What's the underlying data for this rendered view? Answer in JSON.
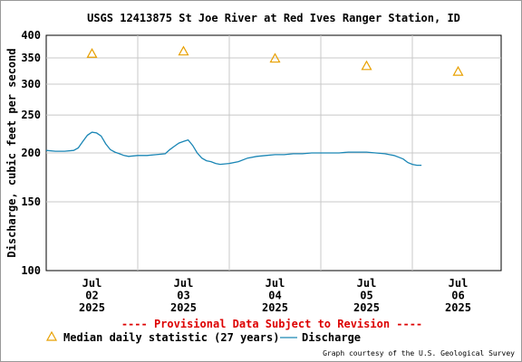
{
  "chart_data": {
    "type": "line",
    "title": "USGS 12413875 St Joe River at Red Ives Ranger Station, ID",
    "ylabel": "Discharge, cubic feet per second",
    "xlabel": "",
    "yscale": "log",
    "ylim": [
      100,
      400
    ],
    "yticks": [
      100,
      150,
      200,
      250,
      300,
      350,
      400
    ],
    "xlim": [
      0,
      4.5
    ],
    "xticks": [
      {
        "x": 0.5,
        "lines": [
          "Jul",
          "02",
          "2025"
        ]
      },
      {
        "x": 1.5,
        "lines": [
          "Jul",
          "03",
          "2025"
        ]
      },
      {
        "x": 2.5,
        "lines": [
          "Jul",
          "04",
          "2025"
        ]
      },
      {
        "x": 3.5,
        "lines": [
          "Jul",
          "05",
          "2025"
        ]
      },
      {
        "x": 4.5,
        "lines": [
          "Jul",
          "06",
          "2025"
        ]
      }
    ],
    "grid": true,
    "provisional_note": "---- Provisional Data Subject to Revision ----",
    "credit": "Graph courtesy of the U.S. Geological Survey",
    "series": [
      {
        "name": "Median daily statistic (27 years)",
        "marker": "triangle",
        "color": "#e8a000",
        "x": [
          0.5,
          1.5,
          2.5,
          3.5,
          4.5
        ],
        "y": [
          359,
          364,
          349,
          334,
          323
        ]
      },
      {
        "name": "Discharge",
        "marker": "line",
        "color": "#1a86b5",
        "x": [
          0.0,
          0.1,
          0.2,
          0.3,
          0.35,
          0.4,
          0.45,
          0.5,
          0.55,
          0.6,
          0.65,
          0.7,
          0.75,
          0.8,
          0.85,
          0.9,
          1.0,
          1.1,
          1.2,
          1.3,
          1.35,
          1.4,
          1.45,
          1.5,
          1.55,
          1.6,
          1.65,
          1.7,
          1.75,
          1.8,
          1.85,
          1.9,
          2.0,
          2.1,
          2.2,
          2.3,
          2.4,
          2.5,
          2.6,
          2.7,
          2.8,
          2.9,
          3.0,
          3.1,
          3.2,
          3.3,
          3.4,
          3.5,
          3.6,
          3.7,
          3.75,
          3.8,
          3.85,
          3.9,
          3.95,
          4.0,
          4.05,
          4.1
        ],
        "y": [
          203,
          202,
          202,
          203,
          206,
          214,
          222,
          226,
          225,
          221,
          211,
          204,
          201,
          199,
          197,
          196,
          197,
          197,
          198,
          199,
          204,
          208,
          212,
          214,
          216,
          209,
          200,
          194,
          191,
          190,
          188,
          187,
          188,
          190,
          194,
          196,
          197,
          198,
          198,
          199,
          199,
          200,
          200,
          200,
          200,
          201,
          201,
          201,
          200,
          199,
          198,
          197,
          195,
          193,
          189,
          187,
          186,
          186
        ]
      }
    ]
  }
}
